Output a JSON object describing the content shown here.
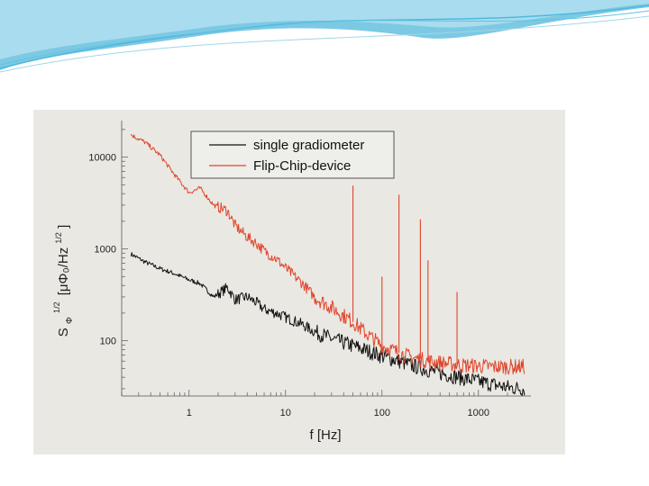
{
  "colors": {
    "slide_accent": "#4fb8dd",
    "panel_background": "#eae8e2",
    "single_gradiometer": "#111111",
    "flip_chip_device": "#e0452c"
  },
  "chart_data": {
    "type": "line",
    "title": "",
    "xlabel": "f [Hz]",
    "ylabel": "S_Φ^1/2 [μΦ0/Hz^1/2]",
    "ylabel_parts": {
      "s": "S",
      "sup": "1/2",
      "sub": "Φ",
      "units": "[μΦ₀/Hz",
      "units_sup": "1/2",
      "close": "]"
    },
    "x_scale": "log",
    "y_scale": "log",
    "xlim": [
      0.2,
      3500
    ],
    "ylim": [
      25,
      25000
    ],
    "x_ticks": [
      {
        "value": 1,
        "label": "1"
      },
      {
        "value": 10,
        "label": "10"
      },
      {
        "value": 100,
        "label": "100"
      },
      {
        "value": 1000,
        "label": "1000"
      }
    ],
    "y_ticks": [
      {
        "value": 100,
        "label": "100"
      },
      {
        "value": 1000,
        "label": "1000"
      },
      {
        "value": 10000,
        "label": "10000"
      }
    ],
    "grid": false,
    "legend_position": "top-center",
    "series": [
      {
        "name": "single gradiometer",
        "color": "#111111",
        "x": [
          0.25,
          0.35,
          0.5,
          0.7,
          1.0,
          1.3,
          1.8,
          2.5,
          3.0,
          4.0,
          5.0,
          6.0,
          8.0,
          10,
          15,
          20,
          30,
          50,
          70,
          100,
          150,
          200,
          300,
          500,
          700,
          1000,
          1500,
          2000,
          3000
        ],
        "y": [
          880,
          720,
          610,
          540,
          460,
          420,
          300,
          380,
          280,
          300,
          260,
          220,
          200,
          180,
          150,
          125,
          105,
          88,
          78,
          68,
          60,
          54,
          48,
          42,
          39,
          36,
          33,
          31,
          30
        ]
      },
      {
        "name": "Flip-Chip-device",
        "color": "#e0452c",
        "x": [
          0.25,
          0.35,
          0.5,
          0.7,
          1.0,
          1.3,
          1.8,
          2.5,
          3.0,
          4.0,
          5.0,
          6.0,
          8.0,
          10,
          15,
          20,
          30,
          50,
          70,
          100,
          150,
          200,
          300,
          500,
          700,
          1000,
          1500,
          2000,
          3000
        ],
        "y": [
          17500,
          14500,
          10500,
          6500,
          4100,
          4600,
          3000,
          2600,
          1800,
          1350,
          1150,
          950,
          780,
          620,
          420,
          300,
          230,
          160,
          118,
          88,
          74,
          66,
          60,
          56,
          54,
          53,
          52,
          52,
          52
        ],
        "spikes": [
          {
            "x": 50,
            "y": 4900
          },
          {
            "x": 100,
            "y": 500
          },
          {
            "x": 150,
            "y": 3900
          },
          {
            "x": 250,
            "y": 2100
          },
          {
            "x": 300,
            "y": 750
          },
          {
            "x": 600,
            "y": 340
          }
        ]
      }
    ]
  }
}
